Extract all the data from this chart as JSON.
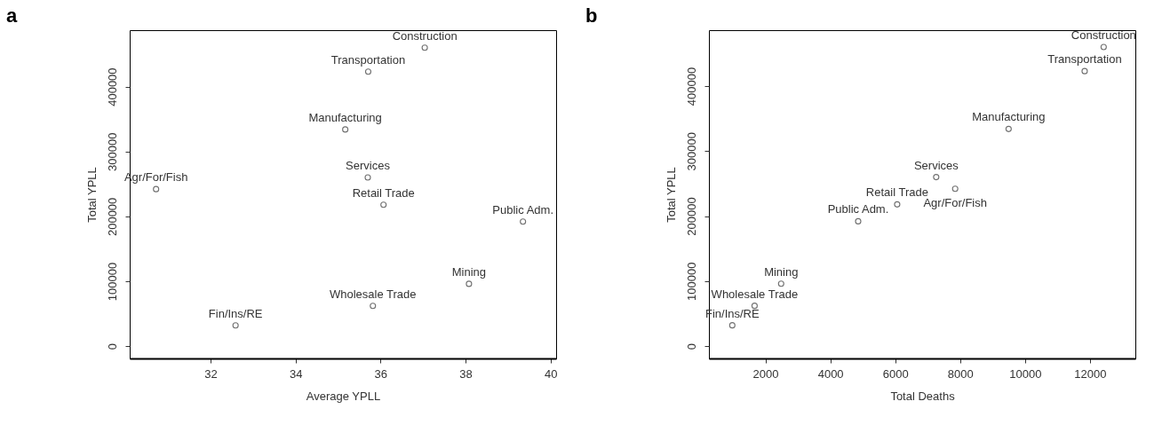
{
  "chart_data": [
    {
      "type": "scatter",
      "title": "a",
      "xlabel": "Average YPLL",
      "ylabel": "Total YPLL",
      "marker": "circle",
      "grid": false,
      "x": [
        37.04,
        35.71,
        35.17,
        35.7,
        30.72,
        36.07,
        39.35,
        38.08,
        35.82,
        32.59
      ],
      "series": [
        {
          "color": "#333333",
          "values": [
            460000,
            423000,
            334000,
            260000,
            242000,
            218000,
            192000,
            96000,
            62000,
            32000
          ]
        }
      ],
      "xlim": [
        30.1,
        40.13
      ],
      "ylim": [
        -19000,
        487000
      ],
      "xticks": [
        32,
        34,
        36,
        38,
        40
      ],
      "yticks": [
        0,
        100000,
        200000,
        300000,
        400000
      ],
      "annotations": [
        {
          "text": "Construction",
          "x": 37.04,
          "y": 460000
        },
        {
          "text": "Transportation",
          "x": 35.71,
          "y": 423000
        },
        {
          "text": "Manufacturing",
          "x": 35.17,
          "y": 334000
        },
        {
          "text": "Services",
          "x": 35.7,
          "y": 260000
        },
        {
          "text": "Agr/For/Fish",
          "x": 30.72,
          "y": 242000
        },
        {
          "text": "Retail Trade",
          "x": 36.07,
          "y": 218000
        },
        {
          "text": "Public Adm.",
          "x": 39.35,
          "y": 192000
        },
        {
          "text": "Mining",
          "x": 38.08,
          "y": 96000
        },
        {
          "text": "Wholesale Trade",
          "x": 35.82,
          "y": 62000
        },
        {
          "text": "Fin/Ins/RE",
          "x": 32.59,
          "y": 32000
        }
      ]
    },
    {
      "type": "scatter",
      "title": "b",
      "xlabel": "Total Deaths",
      "ylabel": "Total YPLL",
      "marker": "circle",
      "grid": false,
      "x": [
        12424,
        11838,
        9495,
        7263,
        7848,
        6061,
        4859,
        2485,
        1667,
        980
      ],
      "series": [
        {
          "color": "#333333",
          "values": [
            460000,
            423000,
            334000,
            260000,
            242000,
            218000,
            192000,
            96000,
            62000,
            32000
          ]
        }
      ],
      "xlim": [
        260,
        13400
      ],
      "ylim": [
        -19000,
        486000
      ],
      "xticks": [
        2000,
        4000,
        6000,
        8000,
        10000,
        12000
      ],
      "yticks": [
        0,
        100000,
        200000,
        300000,
        400000
      ],
      "annotations": [
        {
          "text": "Construction",
          "x": 12424,
          "y": 460000
        },
        {
          "text": "Transportation",
          "x": 11838,
          "y": 423000
        },
        {
          "text": "Manufacturing",
          "x": 9495,
          "y": 334000
        },
        {
          "text": "Services",
          "x": 7263,
          "y": 260000
        },
        {
          "text": "Agr/For/Fish",
          "x": 7848,
          "y": 242000
        },
        {
          "text": "Retail Trade",
          "x": 6061,
          "y": 218000
        },
        {
          "text": "Public Adm.",
          "x": 4859,
          "y": 192000
        },
        {
          "text": "Mining",
          "x": 2485,
          "y": 96000
        },
        {
          "text": "Wholesale Trade",
          "x": 1667,
          "y": 62000
        },
        {
          "text": "Fin/Ins/RE",
          "x": 980,
          "y": 32000
        }
      ]
    }
  ]
}
